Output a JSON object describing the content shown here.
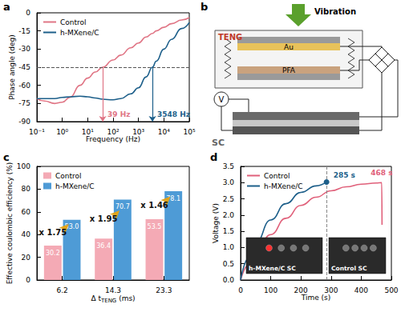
{
  "chart_data": [
    {
      "panel": "a",
      "type": "line",
      "log": "x",
      "xlabel": "Frequency (Hz)",
      "ylabel": "Phase angle (deg)",
      "x": [
        0.1,
        0.2,
        0.5,
        1,
        2,
        5,
        10,
        20,
        39,
        100,
        200,
        500,
        1000,
        2000,
        3548,
        5000,
        10000,
        20000,
        50000,
        100000
      ],
      "series": [
        {
          "name": "Control",
          "color": "#e07585",
          "values": [
            -71,
            -73,
            -75,
            -74,
            -70,
            -60,
            -54,
            -49,
            -45,
            -39,
            -35,
            -29,
            -25,
            -20,
            -17,
            -15,
            -12,
            -9,
            -6,
            -4
          ]
        },
        {
          "name": "h-MXene/C",
          "color": "#1d5f8a",
          "values": [
            -71,
            -71,
            -71,
            -70,
            -69.5,
            -69,
            -69.5,
            -70.5,
            -71.5,
            -72,
            -71,
            -67,
            -62,
            -53,
            -45,
            -40,
            -30,
            -22,
            -13,
            -8
          ]
        }
      ],
      "xlim": [
        0.1,
        100000
      ],
      "xticks": [
        {
          "value": 0.1,
          "label": "10⁻¹"
        },
        {
          "value": 1,
          "label": "10⁰"
        },
        {
          "value": 10,
          "label": "10¹"
        },
        {
          "value": 100,
          "label": "10²"
        },
        {
          "value": 1000,
          "label": "10³"
        },
        {
          "value": 10000,
          "label": "10⁴"
        },
        {
          "value": 100000,
          "label": "10⁵"
        }
      ],
      "ylim": [
        -90,
        0
      ],
      "yticks": [
        -90,
        -75,
        -60,
        -45,
        -30,
        -15,
        0
      ],
      "reference_y": -45,
      "annotations": [
        {
          "text": "39 Hz",
          "x": 39,
          "series": "Control"
        },
        {
          "text": "3548 Hz",
          "x": 3548,
          "series": "h-MXene/C"
        }
      ],
      "grid": false,
      "legend": "upper left"
    },
    {
      "panel": "c",
      "type": "bar",
      "xlabel": "Δ t",
      "xlabel_subscript": "TENG",
      "xlabel_unit": "(ms)",
      "ylabel": "Effective coulombic efficiency (%)",
      "categories": [
        "6.2",
        "14.3",
        "23.3"
      ],
      "series": [
        {
          "name": "Control",
          "color": "#f4aab5",
          "values": [
            30.2,
            36.4,
            53.5
          ],
          "value_labels": [
            "30.2",
            "36.4",
            "53.5"
          ]
        },
        {
          "name": "h-MXene/C",
          "color": "#4e9bd6",
          "values": [
            53.0,
            70.7,
            78.1
          ],
          "value_labels": [
            "53.0",
            "70.7",
            "78.1"
          ]
        }
      ],
      "ratio_labels": [
        "x 1.75",
        "x 1.95",
        "x 1.46"
      ],
      "ylim": [
        0,
        100
      ],
      "yticks": [
        0,
        20,
        40,
        60,
        80,
        100
      ],
      "data_labels": true,
      "grid": false,
      "legend": "upper left"
    },
    {
      "panel": "d",
      "type": "line",
      "xlabel": "Time (s)",
      "ylabel": "Voltage (V)",
      "series": [
        {
          "name": "Control",
          "color": "#e0607a",
          "x": [
            0,
            25,
            50,
            100,
            150,
            200,
            250,
            300,
            350,
            400,
            450,
            468,
            469
          ],
          "values": [
            0,
            0.45,
            0.8,
            1.4,
            1.9,
            2.3,
            2.55,
            2.75,
            2.87,
            2.95,
            2.99,
            3.0,
            1.7
          ]
        },
        {
          "name": "h-MXene/C",
          "color": "#1d5f8a",
          "x": [
            0,
            25,
            50,
            100,
            150,
            200,
            250,
            285
          ],
          "values": [
            0,
            0.65,
            1.15,
            1.85,
            2.35,
            2.7,
            2.9,
            3.02
          ]
        }
      ],
      "xlim": [
        0,
        500
      ],
      "xticks": [
        0,
        100,
        200,
        300,
        400,
        500
      ],
      "ylim": [
        0,
        3.5
      ],
      "yticks": [
        {
          "value": 0,
          "label": "0.0"
        },
        0.5,
        {
          "value": 1,
          "label": "1.0"
        },
        1.5,
        {
          "value": 2,
          "label": "2.0"
        },
        2.5,
        {
          "value": 3,
          "label": "3.0"
        },
        3.5
      ],
      "annotations": [
        {
          "text": "285 s",
          "x": 285,
          "series": "h-MXene/C",
          "marker": "circle",
          "line_style": "dashed"
        },
        {
          "text": "468 s",
          "x": 468,
          "series": "Control"
        }
      ],
      "insets": [
        "h-MXene/C SC",
        "Control SC"
      ],
      "grid": false,
      "legend": "upper left"
    }
  ],
  "diagram": {
    "panel": "b",
    "labels": {
      "vibration": "Vibration",
      "generator": "TENG",
      "top_electrode": "Au",
      "bottom_layer": "PFA",
      "capacitor": "SC",
      "meter": "V"
    }
  }
}
